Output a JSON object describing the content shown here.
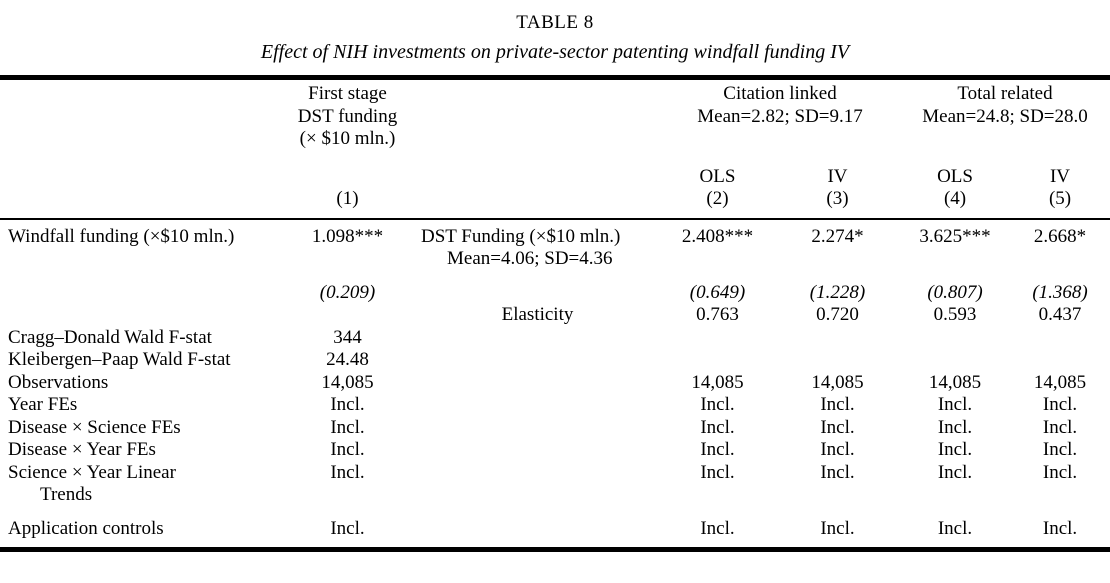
{
  "page": {
    "title": "TABLE 8",
    "subtitle": "Effect of NIH investments on private-sector patenting windfall funding IV"
  },
  "header": {
    "first_stage_lines": [
      "First stage",
      "DST funding",
      "(× $10 mln.)"
    ],
    "citation_linked": {
      "title": "Citation linked",
      "stats": "Mean=2.82; SD=9.17"
    },
    "total_related": {
      "title": "Total related",
      "stats": "Mean=24.8; SD=28.0"
    },
    "method_labels": {
      "c2": "OLS",
      "c3": "IV",
      "c4": "OLS",
      "c5": "IV"
    },
    "col_numbers": {
      "c1": "(1)",
      "c2": "(2)",
      "c3": "(3)",
      "c4": "(4)",
      "c5": "(5)"
    }
  },
  "body": {
    "rows": [
      {
        "label": "Windfall funding (×$10 mln.)",
        "c1": "1.098***",
        "mid": "DST Funding (×$10 mln.)",
        "c2": "2.408***",
        "c3": "2.274*",
        "c4": "3.625***",
        "c5": "2.668*"
      },
      {
        "label": "",
        "c1": "",
        "mid": "Mean=4.06; SD=4.36",
        "c2": "",
        "c3": "",
        "c4": "",
        "c5": "",
        "mid_indent": true
      },
      {
        "label": "",
        "c1": "(0.209)",
        "mid": "",
        "c2": "(0.649)",
        "c3": "(1.228)",
        "c4": "(0.807)",
        "c5": "(1.368)",
        "italic": true,
        "gap_top": true
      },
      {
        "label": "",
        "c1": "",
        "mid": "Elasticity",
        "c2": "0.763",
        "c3": "0.720",
        "c4": "0.593",
        "c5": "0.437",
        "mid_center": true
      },
      {
        "label": "Cragg–Donald Wald F-stat",
        "c1": "344",
        "mid": "",
        "c2": "",
        "c3": "",
        "c4": "",
        "c5": ""
      },
      {
        "label": "Kleibergen–Paap Wald F-stat",
        "c1": "24.48",
        "mid": "",
        "c2": "",
        "c3": "",
        "c4": "",
        "c5": ""
      },
      {
        "label": "Observations",
        "c1": "14,085",
        "mid": "",
        "c2": "14,085",
        "c3": "14,085",
        "c4": "14,085",
        "c5": "14,085"
      },
      {
        "label": "Year FEs",
        "c1": "Incl.",
        "mid": "",
        "c2": "Incl.",
        "c3": "Incl.",
        "c4": "Incl.",
        "c5": "Incl."
      },
      {
        "label": "Disease × Science FEs",
        "c1": "Incl.",
        "mid": "",
        "c2": "Incl.",
        "c3": "Incl.",
        "c4": "Incl.",
        "c5": "Incl."
      },
      {
        "label": "Disease × Year FEs",
        "c1": "Incl.",
        "mid": "",
        "c2": "Incl.",
        "c3": "Incl.",
        "c4": "Incl.",
        "c5": "Incl."
      },
      {
        "label": "Science × Year Linear",
        "c1": "Incl.",
        "mid": "",
        "c2": "Incl.",
        "c3": "Incl.",
        "c4": "Incl.",
        "c5": "Incl."
      },
      {
        "label": "Trends",
        "c1": "",
        "mid": "",
        "c2": "",
        "c3": "",
        "c4": "",
        "c5": "",
        "label_indent": true
      },
      {
        "label": "Application controls",
        "c1": "Incl.",
        "mid": "",
        "c2": "Incl.",
        "c3": "Incl.",
        "c4": "Incl.",
        "c5": "Incl.",
        "gap_top": true
      }
    ]
  }
}
